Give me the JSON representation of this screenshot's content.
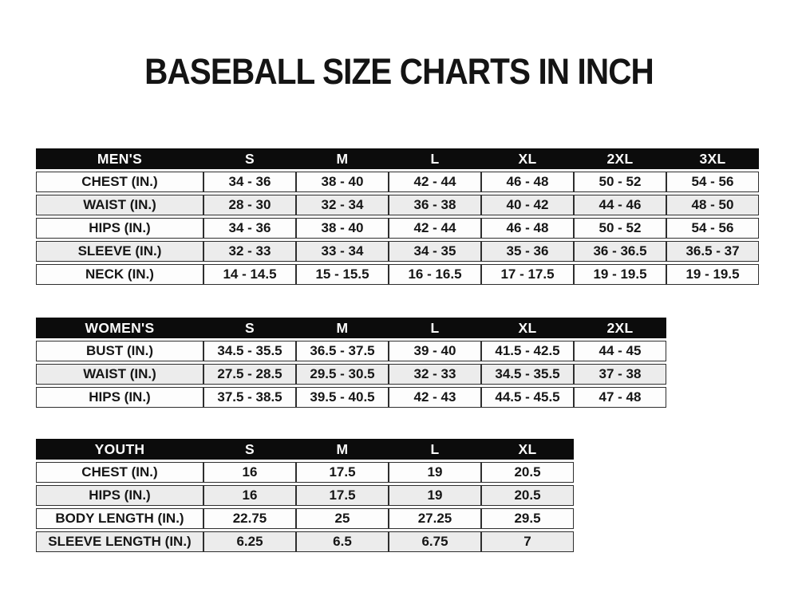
{
  "page": {
    "title": "BASEBALL SIZE CHARTS IN INCH"
  },
  "chart_data": [
    {
      "type": "table",
      "id": "mens",
      "group_label": "MEN'S",
      "columns": [
        "MEN'S",
        "S",
        "M",
        "L",
        "XL",
        "2XL",
        "3XL"
      ],
      "rows": [
        [
          "CHEST (IN.)",
          "34 - 36",
          "38 - 40",
          "42 - 44",
          "46 - 48",
          "50 - 52",
          "54 - 56"
        ],
        [
          "WAIST (IN.)",
          "28 - 30",
          "32 - 34",
          "36 - 38",
          "40 - 42",
          "44 - 46",
          "48 - 50"
        ],
        [
          "HIPS (IN.)",
          "34 - 36",
          "38 - 40",
          "42 - 44",
          "46 - 48",
          "50 - 52",
          "54 - 56"
        ],
        [
          "SLEEVE (IN.)",
          "32 - 33",
          "33 - 34",
          "34 - 35",
          "35 - 36",
          "36 - 36.5",
          "36.5 - 37"
        ],
        [
          "NECK (IN.)",
          "14 - 14.5",
          "15 - 15.5",
          "16 - 16.5",
          "17 - 17.5",
          "19 - 19.5",
          "19 - 19.5"
        ]
      ]
    },
    {
      "type": "table",
      "id": "womens",
      "group_label": "WOMEN'S",
      "columns": [
        "WOMEN'S",
        "S",
        "M",
        "L",
        "XL",
        "2XL"
      ],
      "rows": [
        [
          "BUST (IN.)",
          "34.5 - 35.5",
          "36.5 - 37.5",
          "39 - 40",
          "41.5 - 42.5",
          "44 - 45"
        ],
        [
          "WAIST (IN.)",
          "27.5 - 28.5",
          "29.5 - 30.5",
          "32 - 33",
          "34.5 - 35.5",
          "37 - 38"
        ],
        [
          "HIPS (IN.)",
          "37.5 - 38.5",
          "39.5 - 40.5",
          "42 - 43",
          "44.5 - 45.5",
          "47 - 48"
        ]
      ]
    },
    {
      "type": "table",
      "id": "youth",
      "group_label": "YOUTH",
      "columns": [
        "YOUTH",
        "S",
        "M",
        "L",
        "XL"
      ],
      "rows": [
        [
          "CHEST (IN.)",
          "16",
          "17.5",
          "19",
          "20.5"
        ],
        [
          "HIPS (IN.)",
          "16",
          "17.5",
          "19",
          "20.5"
        ],
        [
          "BODY LENGTH (IN.)",
          "22.75",
          "25",
          "27.25",
          "29.5"
        ],
        [
          "SLEEVE LENGTH (IN.)",
          "6.25",
          "6.5",
          "6.75",
          "7"
        ]
      ]
    }
  ],
  "colors": {
    "header_bg": "#0c0c0c",
    "header_text": "#fbfbfb",
    "row_bg": "#fdfdfd",
    "row_alt_bg": "#ececec",
    "border": "#2e2e2e",
    "text": "#161616",
    "page_bg": "#ffffff"
  }
}
